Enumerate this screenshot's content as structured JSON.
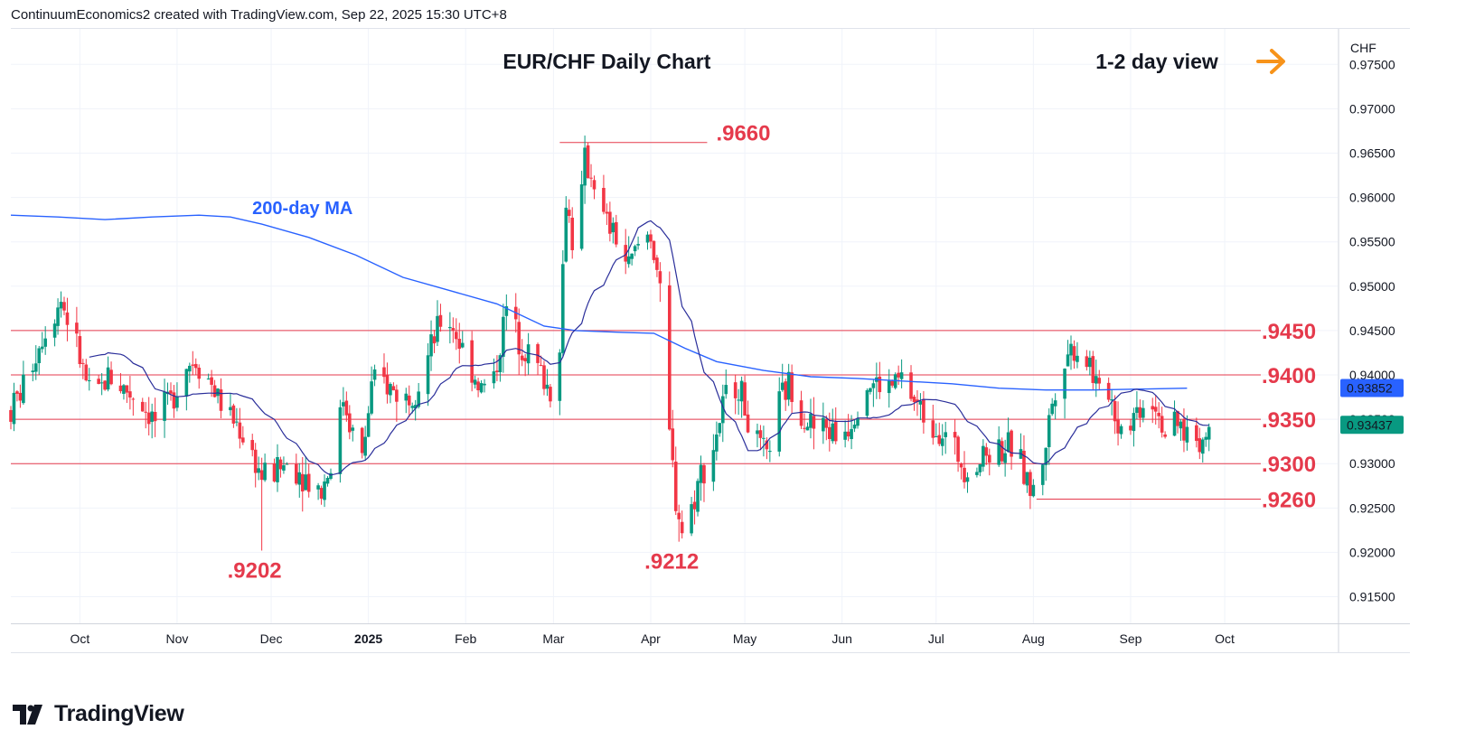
{
  "header": {
    "text": "ContinuumEconomics2 created with TradingView.com, Sep 22, 2025 15:30 UTC+8"
  },
  "logo": {
    "text": "TradingView"
  },
  "colors": {
    "up": "#089981",
    "down": "#f23645",
    "ma200": "#2962ff",
    "ma20": "#2a2e9a",
    "level": "#e53a4c",
    "arrow": "#f7931a"
  },
  "chart_data": {
    "type": "candlestick",
    "title": "EUR/CHF Daily Chart",
    "view_label": "1-2 day view",
    "currency": "CHF",
    "ylim": [
      0.912,
      0.979
    ],
    "y_ticks": [
      "0.97500",
      "0.97000",
      "0.96500",
      "0.96000",
      "0.95500",
      "0.95000",
      "0.94500",
      "0.94000",
      "0.93500",
      "0.93000",
      "0.92500",
      "0.92000",
      "0.91500"
    ],
    "x_ticks": [
      {
        "label": "Oct",
        "day": 22
      },
      {
        "label": "Nov",
        "day": 53
      },
      {
        "label": "Dec",
        "day": 83
      },
      {
        "label": "2025",
        "day": 114,
        "bold": true
      },
      {
        "label": "Feb",
        "day": 145
      },
      {
        "label": "Mar",
        "day": 173
      },
      {
        "label": "Apr",
        "day": 204
      },
      {
        "label": "May",
        "day": 234
      },
      {
        "label": "Jun",
        "day": 265
      },
      {
        "label": "Jul",
        "day": 295
      },
      {
        "label": "Aug",
        "day": 326
      },
      {
        "label": "Sep",
        "day": 357
      },
      {
        "label": "Oct",
        "day": 387
      }
    ],
    "x_range_days": [
      0,
      423
    ],
    "ma_label": "200-day MA",
    "levels": [
      {
        "label": ".9450",
        "value": 0.945,
        "full": true
      },
      {
        "label": ".9400",
        "value": 0.94,
        "full": true
      },
      {
        "label": ".9350",
        "value": 0.935,
        "full": true
      },
      {
        "label": ".9300",
        "value": 0.93,
        "full": true
      },
      {
        "label": ".9260",
        "value": 0.926,
        "from_day": 327
      },
      {
        "label": ".9660",
        "value": 0.9662,
        "from_day": 175,
        "to_day": 222,
        "label_above": true
      }
    ],
    "low_labels": [
      {
        "label": ".9202",
        "day": 80,
        "value": 0.9202
      },
      {
        "label": ".9212",
        "day": 213,
        "value": 0.9212
      }
    ],
    "badges": [
      {
        "label": "0.93852",
        "value": 0.93852,
        "color": "#2962ff"
      },
      {
        "label": "0.93437",
        "value": 0.93437,
        "color": "#089981"
      }
    ],
    "anchors": [
      [
        0,
        0.936
      ],
      [
        5,
        0.9395
      ],
      [
        10,
        0.9445
      ],
      [
        16,
        0.9485
      ],
      [
        20,
        0.9445
      ],
      [
        26,
        0.9365
      ],
      [
        31,
        0.94
      ],
      [
        36,
        0.9385
      ],
      [
        41,
        0.9372
      ],
      [
        46,
        0.9348
      ],
      [
        51,
        0.937
      ],
      [
        55,
        0.941
      ],
      [
        59,
        0.9418
      ],
      [
        64,
        0.939
      ],
      [
        68,
        0.936
      ],
      [
        72,
        0.9345
      ],
      [
        76,
        0.932
      ],
      [
        80,
        0.9285
      ],
      [
        84,
        0.929
      ],
      [
        88,
        0.93
      ],
      [
        92,
        0.9292
      ],
      [
        96,
        0.9278
      ],
      [
        99,
        0.927
      ],
      [
        103,
        0.931
      ],
      [
        106,
        0.9375
      ],
      [
        109,
        0.9335
      ],
      [
        112,
        0.9305
      ],
      [
        115,
        0.9385
      ],
      [
        118,
        0.9395
      ],
      [
        122,
        0.9382
      ],
      [
        126,
        0.9375
      ],
      [
        130,
        0.939
      ],
      [
        134,
        0.943
      ],
      [
        138,
        0.947
      ],
      [
        141,
        0.9455
      ],
      [
        145,
        0.942
      ],
      [
        150,
        0.9385
      ],
      [
        154,
        0.9395
      ],
      [
        158,
        0.9475
      ],
      [
        162,
        0.944
      ],
      [
        166,
        0.942
      ],
      [
        170,
        0.9395
      ],
      [
        173,
        0.9375
      ],
      [
        175,
        0.944
      ],
      [
        177,
        0.96
      ],
      [
        180,
        0.953
      ],
      [
        183,
        0.964
      ],
      [
        186,
        0.962
      ],
      [
        189,
        0.9575
      ],
      [
        193,
        0.9555
      ],
      [
        197,
        0.952
      ],
      [
        201,
        0.9555
      ],
      [
        204,
        0.956
      ],
      [
        206,
        0.952
      ],
      [
        208,
        0.945
      ],
      [
        210,
        0.933
      ],
      [
        212,
        0.926
      ],
      [
        214,
        0.9225
      ],
      [
        217,
        0.925
      ],
      [
        220,
        0.929
      ],
      [
        223,
        0.9305
      ],
      [
        226,
        0.935
      ],
      [
        229,
        0.939
      ],
      [
        232,
        0.939
      ],
      [
        235,
        0.935
      ],
      [
        238,
        0.932
      ],
      [
        241,
        0.9305
      ],
      [
        244,
        0.936
      ],
      [
        248,
        0.939
      ],
      [
        252,
        0.936
      ],
      [
        256,
        0.934
      ],
      [
        260,
        0.934
      ],
      [
        264,
        0.933
      ],
      [
        268,
        0.935
      ],
      [
        272,
        0.939
      ],
      [
        276,
        0.939
      ],
      [
        280,
        0.9385
      ],
      [
        284,
        0.9395
      ],
      [
        288,
        0.937
      ],
      [
        292,
        0.935
      ],
      [
        296,
        0.934
      ],
      [
        300,
        0.932
      ],
      [
        304,
        0.9298
      ],
      [
        308,
        0.93
      ],
      [
        312,
        0.9315
      ],
      [
        316,
        0.9318
      ],
      [
        320,
        0.9318
      ],
      [
        323,
        0.929
      ],
      [
        325,
        0.927
      ],
      [
        327,
        0.9265
      ],
      [
        329,
        0.9305
      ],
      [
        332,
        0.937
      ],
      [
        335,
        0.942
      ],
      [
        338,
        0.943
      ],
      [
        341,
        0.9428
      ],
      [
        344,
        0.9415
      ],
      [
        347,
        0.9375
      ],
      [
        350,
        0.9385
      ],
      [
        353,
        0.9345
      ],
      [
        356,
        0.9345
      ],
      [
        359,
        0.936
      ],
      [
        362,
        0.9375
      ],
      [
        365,
        0.937
      ],
      [
        368,
        0.9335
      ],
      [
        372,
        0.934
      ],
      [
        376,
        0.9335
      ],
      [
        379,
        0.9325
      ],
      [
        381,
        0.933
      ],
      [
        383,
        0.9345
      ]
    ],
    "ma200_points": [
      [
        0,
        0.958
      ],
      [
        15,
        0.9578
      ],
      [
        30,
        0.9575
      ],
      [
        45,
        0.9578
      ],
      [
        60,
        0.958
      ],
      [
        70,
        0.9578
      ],
      [
        80,
        0.957
      ],
      [
        95,
        0.9555
      ],
      [
        110,
        0.9535
      ],
      [
        125,
        0.951
      ],
      [
        140,
        0.9495
      ],
      [
        155,
        0.948
      ],
      [
        170,
        0.9455
      ],
      [
        180,
        0.945
      ],
      [
        195,
        0.9448
      ],
      [
        205,
        0.9447
      ],
      [
        215,
        0.943
      ],
      [
        225,
        0.9415
      ],
      [
        240,
        0.9405
      ],
      [
        255,
        0.9398
      ],
      [
        270,
        0.9396
      ],
      [
        285,
        0.9393
      ],
      [
        300,
        0.939
      ],
      [
        315,
        0.9385
      ],
      [
        330,
        0.9383
      ],
      [
        345,
        0.9383
      ],
      [
        360,
        0.9384
      ],
      [
        375,
        0.9385
      ]
    ]
  }
}
